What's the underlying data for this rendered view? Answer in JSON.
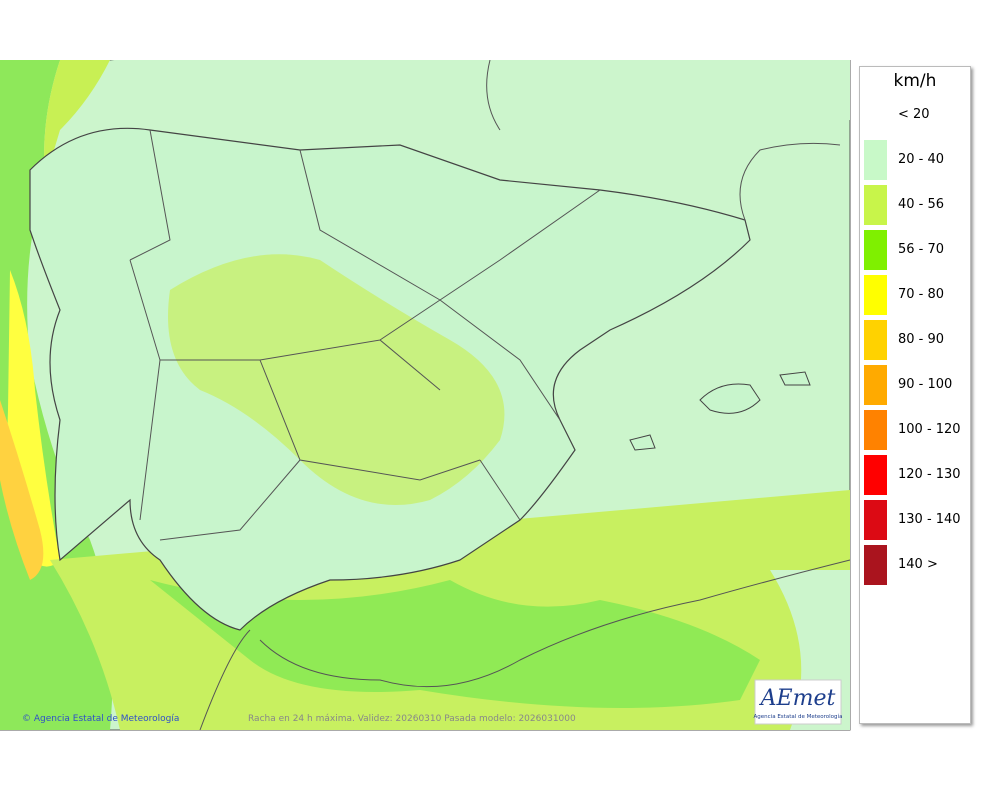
{
  "legend": {
    "title": "km/h",
    "items": [
      {
        "label": "< 20"
      },
      {
        "label": "20 - 40",
        "color": "#c8f9c8"
      },
      {
        "label": "40 - 56",
        "color": "#c8f54a"
      },
      {
        "label": "56 - 70",
        "color": "#7ff000"
      },
      {
        "label": "70 - 80",
        "color": "#ffff00"
      },
      {
        "label": "80 - 90",
        "color": "#ffd200"
      },
      {
        "label": "90 - 100",
        "color": "#ffaa00"
      },
      {
        "label": "100 - 120",
        "color": "#ff8200"
      },
      {
        "label": "120 - 130",
        "color": "#ff0000"
      },
      {
        "label": "130 - 140",
        "color": "#dc0a14"
      },
      {
        "label": "140 >",
        "color": "#aa141e"
      }
    ]
  },
  "footer": {
    "copyright": "© Agencia Estatal de Meteorología",
    "caption": "Racha en 24 h máxima. Validez: 20260310 Pasada modelo: 2026031000"
  },
  "logo": {
    "text": "AEmet",
    "subtitle": "Agencia Estatal de Meteorología"
  }
}
